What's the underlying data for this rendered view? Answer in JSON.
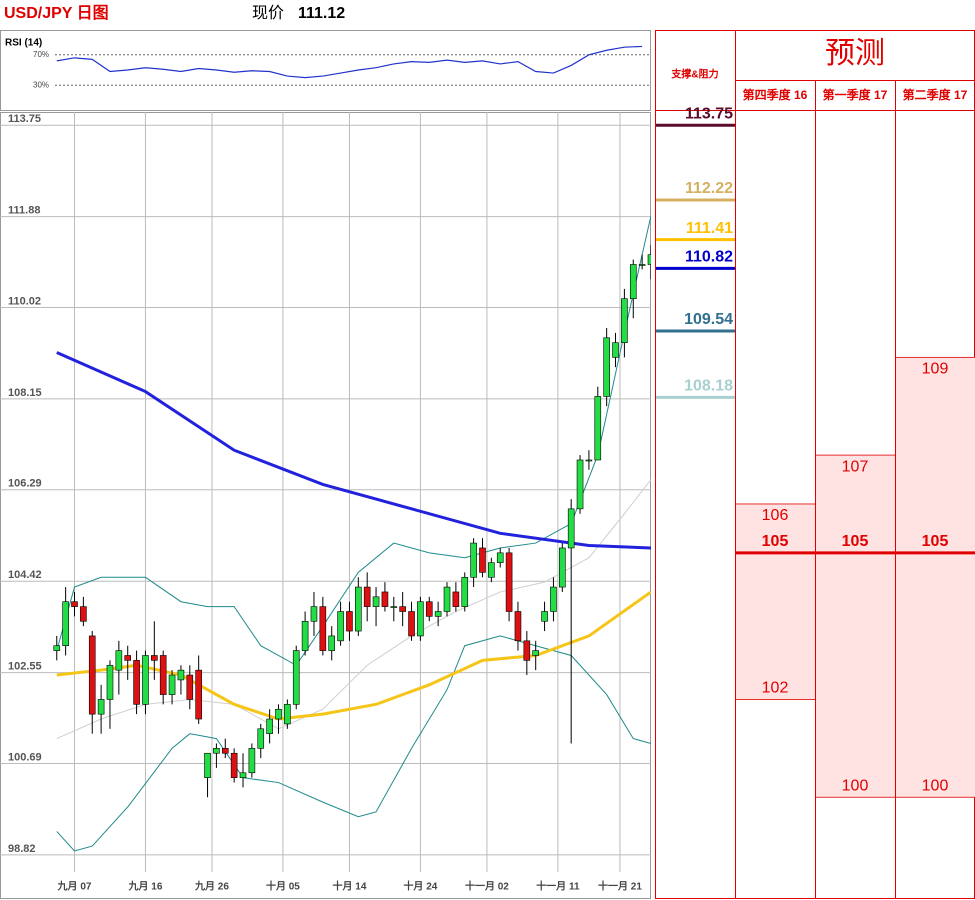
{
  "header": {
    "title": "USD/JPY 日图",
    "price_label": "现价",
    "price": 111.12
  },
  "rsi_panel": {
    "type": "line",
    "title": "RSI (14)",
    "ylim": [
      0,
      100
    ],
    "levels": [
      {
        "value": 70,
        "label": "70%"
      },
      {
        "value": 30,
        "label": "30%"
      }
    ],
    "color": "#2233cc",
    "x": [
      0,
      2,
      4,
      6,
      8,
      10,
      12,
      14,
      16,
      18,
      20,
      22,
      24,
      26,
      28,
      30,
      32,
      34,
      36,
      38,
      40,
      42,
      44,
      46,
      48,
      50,
      52,
      54,
      56,
      58,
      60,
      62,
      64,
      66
    ],
    "values": [
      62,
      66,
      64,
      48,
      50,
      53,
      51,
      48,
      52,
      50,
      47,
      49,
      48,
      42,
      40,
      42,
      46,
      50,
      53,
      58,
      61,
      60,
      63,
      60,
      62,
      58,
      61,
      48,
      46,
      56,
      70,
      76,
      80,
      81
    ]
  },
  "chart_data": {
    "type": "candlestick",
    "xlim": [
      -6.4,
      67
    ],
    "ylim": [
      98.47,
      114.02
    ],
    "yticks": [
      113.75,
      111.88,
      110.02,
      108.15,
      106.29,
      104.42,
      102.55,
      100.69,
      98.82
    ],
    "xticks": [
      {
        "value": 2,
        "label": "九月 07"
      },
      {
        "value": 10,
        "label": "九月 16"
      },
      {
        "value": 17.5,
        "label": "九月 26"
      },
      {
        "value": 25.5,
        "label": "十月 05"
      },
      {
        "value": 33,
        "label": "十月 14"
      },
      {
        "value": 41,
        "label": "十月 24"
      },
      {
        "value": 48.5,
        "label": "十一月 02"
      },
      {
        "value": 56.5,
        "label": "十一月 11"
      },
      {
        "value": 63.5,
        "label": "十一月 21"
      }
    ],
    "grid": true,
    "up_color": "#22dd44",
    "down_color": "#dd1111",
    "candles": {
      "open": [
        103.0,
        103.1,
        104.0,
        103.9,
        103.3,
        101.7,
        102.0,
        102.6,
        102.9,
        102.8,
        101.9,
        102.9,
        102.9,
        102.1,
        102.4,
        102.5,
        102.6,
        100.4,
        100.9,
        101.0,
        100.9,
        100.4,
        100.5,
        101.0,
        101.3,
        101.6,
        101.5,
        101.9,
        103.0,
        103.6,
        103.9,
        103.0,
        103.2,
        103.8,
        103.4,
        104.3,
        103.9,
        104.2,
        103.9,
        103.9,
        103.8,
        103.3,
        104.0,
        103.7,
        103.8,
        104.2,
        103.9,
        104.5,
        105.1,
        104.5,
        104.8,
        105.0,
        103.8,
        103.2,
        102.9,
        103.6,
        103.8,
        104.3,
        105.1,
        105.9,
        106.9,
        106.9,
        108.2,
        109.0,
        109.3,
        110.2,
        110.9,
        110.9
      ],
      "high": [
        103.3,
        104.3,
        104.2,
        104.1,
        103.4,
        102.3,
        102.8,
        103.2,
        103.1,
        103.0,
        103.0,
        103.6,
        103.0,
        102.6,
        102.7,
        102.7,
        102.9,
        100.9,
        101.1,
        101.2,
        101.0,
        100.9,
        101.1,
        101.5,
        101.8,
        101.9,
        102.0,
        103.1,
        103.8,
        104.2,
        104.1,
        103.5,
        104.0,
        104.0,
        104.5,
        104.6,
        104.3,
        104.4,
        104.1,
        104.2,
        104.0,
        104.1,
        104.1,
        104.0,
        104.4,
        104.4,
        104.6,
        105.3,
        105.3,
        104.9,
        105.1,
        105.1,
        104.0,
        103.4,
        103.2,
        104.0,
        104.5,
        105.2,
        106.1,
        107.0,
        107.1,
        108.4,
        109.6,
        109.5,
        110.4,
        111.0,
        111.1,
        111.3
      ],
      "low": [
        102.8,
        102.9,
        103.7,
        103.5,
        101.3,
        101.3,
        101.4,
        102.1,
        102.4,
        101.7,
        101.7,
        102.4,
        101.9,
        101.9,
        102.1,
        101.8,
        101.5,
        100.0,
        100.6,
        100.8,
        100.3,
        100.2,
        100.4,
        100.8,
        101.1,
        101.3,
        101.4,
        101.8,
        102.9,
        103.3,
        102.9,
        102.8,
        103.1,
        103.2,
        103.3,
        103.6,
        103.5,
        103.8,
        103.6,
        103.5,
        103.2,
        103.2,
        103.6,
        103.5,
        103.7,
        103.8,
        103.8,
        104.3,
        104.5,
        104.4,
        104.7,
        103.6,
        103.0,
        102.5,
        102.6,
        103.4,
        103.6,
        104.2,
        101.1,
        105.8,
        106.7,
        106.9,
        108.0,
        108.8,
        109.0,
        109.8,
        110.8,
        110.6
      ],
      "close": [
        103.1,
        104.0,
        103.9,
        103.6,
        101.7,
        102.0,
        102.7,
        103.0,
        102.8,
        101.9,
        102.9,
        102.8,
        102.1,
        102.5,
        102.6,
        102.0,
        101.6,
        100.9,
        101.0,
        100.9,
        100.4,
        100.5,
        101.0,
        101.4,
        101.6,
        101.8,
        101.9,
        103.0,
        103.6,
        103.9,
        103.0,
        103.3,
        103.8,
        103.4,
        104.3,
        103.9,
        104.1,
        103.9,
        103.9,
        103.8,
        103.3,
        104.0,
        103.7,
        103.8,
        104.3,
        103.9,
        104.5,
        105.2,
        104.6,
        104.8,
        105.0,
        103.8,
        103.2,
        102.8,
        103.0,
        103.8,
        104.3,
        105.1,
        105.9,
        106.9,
        106.9,
        108.2,
        109.4,
        109.3,
        110.2,
        110.9,
        110.9,
        111.1
      ]
    },
    "lines": [
      {
        "color": "#cfcfcf",
        "width": 1,
        "x": [
          0,
          5,
          10,
          15,
          20,
          25,
          30,
          35,
          40,
          45,
          50,
          55,
          60,
          64,
          67
        ],
        "values": [
          101.2,
          101.6,
          101.9,
          102.0,
          101.9,
          101.4,
          101.8,
          102.7,
          103.3,
          103.8,
          104.2,
          104.4,
          104.9,
          105.8,
          106.5
        ]
      },
      {
        "color": "#1f8a8a",
        "width": 1,
        "x": [
          0,
          2,
          5,
          10,
          14,
          17,
          20,
          23,
          27,
          30,
          34,
          38,
          42,
          46,
          50,
          54,
          58,
          61,
          64,
          67
        ],
        "values": [
          103.0,
          104.3,
          104.5,
          104.5,
          104.0,
          103.9,
          103.9,
          103.1,
          102.7,
          103.5,
          104.6,
          105.2,
          105.0,
          104.9,
          105.1,
          105.2,
          105.6,
          107.0,
          109.5,
          111.9
        ]
      },
      {
        "color": "#1f8a8a",
        "width": 1,
        "x": [
          0,
          2,
          4,
          8,
          13,
          15,
          18,
          21,
          25,
          30,
          34,
          36,
          40,
          44,
          46,
          50,
          54,
          58,
          62,
          65,
          67
        ],
        "values": [
          99.3,
          98.9,
          99.0,
          99.8,
          101.0,
          101.3,
          101.2,
          100.4,
          100.3,
          99.9,
          99.6,
          99.7,
          101.0,
          102.2,
          103.1,
          103.3,
          103.1,
          102.9,
          102.1,
          101.2,
          101.1
        ]
      },
      {
        "color": "#2222dd",
        "width": 3,
        "x": [
          0,
          10,
          20,
          30,
          40,
          50,
          60,
          67
        ],
        "values": [
          109.1,
          108.3,
          107.1,
          106.4,
          105.9,
          105.4,
          105.15,
          105.1
        ]
      },
      {
        "color": "#f5c518",
        "width": 3,
        "x": [
          0,
          5,
          9,
          14,
          20,
          25,
          30,
          36,
          42,
          48,
          54,
          60,
          67
        ],
        "values": [
          102.5,
          102.6,
          102.7,
          102.5,
          101.9,
          101.6,
          101.7,
          101.9,
          102.3,
          102.8,
          102.9,
          103.3,
          104.2
        ]
      }
    ]
  },
  "support_resistance": {
    "title": "支撑&阻力",
    "levels": [
      {
        "value": 113.75,
        "color": "#5a0a2a"
      },
      {
        "value": 112.22,
        "color": "#d4b060"
      },
      {
        "value": 111.41,
        "color": "#ffc000"
      },
      {
        "value": 110.82,
        "color": "#0000cc"
      },
      {
        "value": 109.54,
        "color": "#31708f"
      },
      {
        "value": 108.18,
        "color": "#a8d0d0"
      }
    ]
  },
  "forecast": {
    "title": "预测",
    "columns": [
      {
        "label": "第四季度 16",
        "high": 106,
        "mid": 105,
        "low": 102
      },
      {
        "label": "第一季度 17",
        "high": 107,
        "mid": 105,
        "low": 100
      },
      {
        "label": "第二季度 17",
        "high": 109,
        "mid": 105,
        "low": 100
      }
    ]
  }
}
